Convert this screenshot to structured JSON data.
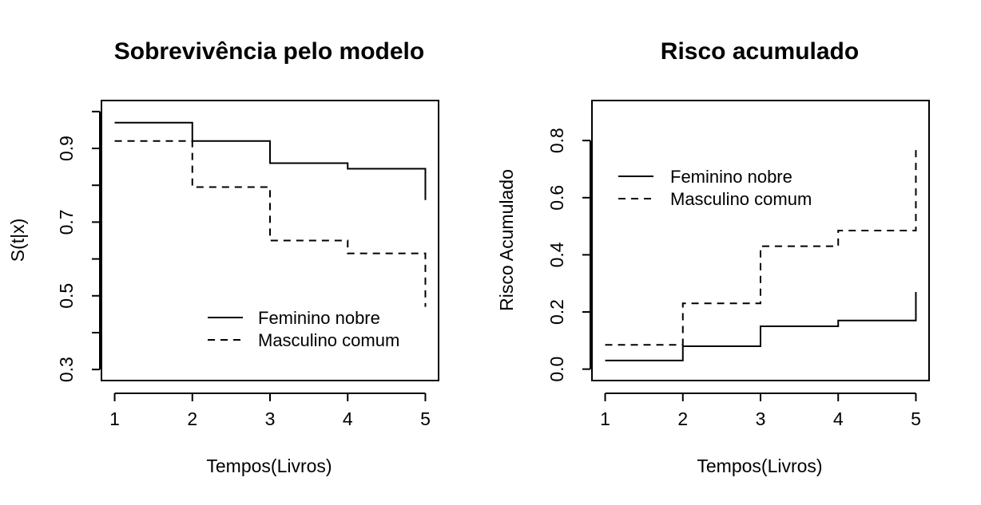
{
  "chart_data": [
    {
      "type": "line",
      "step": true,
      "title": "Sobrevivência pelo modelo",
      "xlabel": "Tempos(Livros)",
      "ylabel": "S(t|x)",
      "xlim": [
        0.83,
        5.17
      ],
      "ylim": [
        0.27,
        1.03
      ],
      "xticks": [
        1,
        2,
        3,
        4,
        5
      ],
      "yticks": [
        0.3,
        0.4,
        0.5,
        0.6,
        0.7,
        0.8,
        0.9,
        1.0
      ],
      "ytick_labels": [
        "0.3",
        "",
        "0.5",
        "",
        "0.7",
        "",
        "0.9",
        ""
      ],
      "grid": false,
      "legend_position": "bottom-right",
      "x": [
        1,
        2,
        3,
        4,
        5
      ],
      "series": [
        {
          "name": "Feminino nobre",
          "line_style": "solid",
          "values": [
            0.97,
            0.92,
            0.86,
            0.845,
            0.76
          ]
        },
        {
          "name": "Masculino comum",
          "line_style": "dashed",
          "values": [
            0.92,
            0.795,
            0.65,
            0.615,
            0.47
          ]
        }
      ]
    },
    {
      "type": "line",
      "step": true,
      "title": "Risco acumulado",
      "xlabel": "Tempos(Livros)",
      "ylabel": "Risco Acumulado",
      "xlim": [
        0.83,
        5.17
      ],
      "ylim": [
        -0.04,
        0.94
      ],
      "xticks": [
        1,
        2,
        3,
        4,
        5
      ],
      "yticks": [
        0.0,
        0.2,
        0.4,
        0.6,
        0.8
      ],
      "ytick_labels": [
        "0.0",
        "0.2",
        "0.4",
        "0.6",
        "0.8"
      ],
      "grid": false,
      "legend_position": "top-left",
      "x": [
        1,
        2,
        3,
        4,
        5
      ],
      "series": [
        {
          "name": "Feminino nobre",
          "line_style": "solid",
          "values": [
            0.03,
            0.08,
            0.15,
            0.17,
            0.27
          ]
        },
        {
          "name": "Masculino comum",
          "line_style": "dashed",
          "values": [
            0.085,
            0.23,
            0.43,
            0.485,
            0.785
          ]
        }
      ]
    }
  ]
}
